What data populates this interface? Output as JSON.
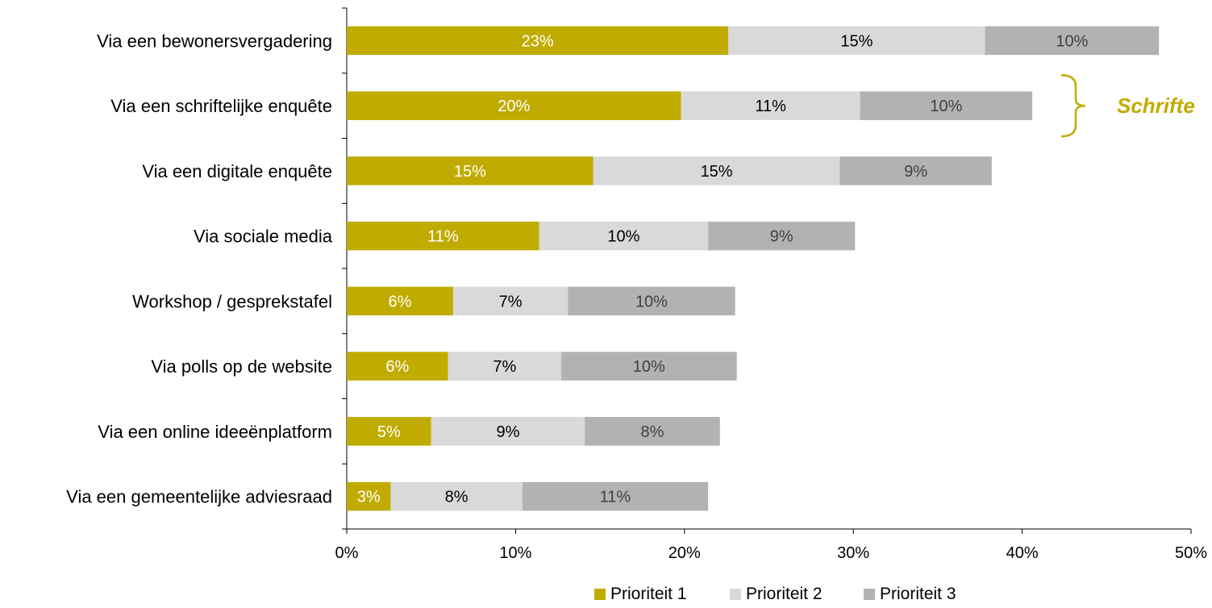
{
  "chart_data": {
    "type": "bar",
    "orientation": "horizontal",
    "stacked": true,
    "categories": [
      "Via een bewonersvergadering",
      "Via een schriftelijke enquête",
      "Via een digitale enquête",
      "Via sociale media",
      "Workshop / gesprekstafel",
      "Via polls op de website",
      "Via een online ideeënplatform",
      "Via een gemeentelijke adviesraad"
    ],
    "series": [
      {
        "name": "Prioriteit 1",
        "color": "#c0ac00",
        "label_color": "#ffffff",
        "values": [
          22.6,
          19.8,
          14.6,
          11.4,
          6.3,
          6.0,
          5.0,
          2.6
        ],
        "labels": [
          "23%",
          "20%",
          "15%",
          "11%",
          "6%",
          "6%",
          "5%",
          "3%"
        ]
      },
      {
        "name": "Prioriteit 2",
        "color": "#d9d9d9",
        "label_color": "#000000",
        "values": [
          15.2,
          10.6,
          14.6,
          10.0,
          6.8,
          6.7,
          9.1,
          7.8
        ],
        "labels": [
          "15%",
          "11%",
          "15%",
          "10%",
          "7%",
          "7%",
          "9%",
          "8%"
        ]
      },
      {
        "name": "Prioriteit 3",
        "color": "#b2b2b2",
        "label_color": "#404040",
        "values": [
          10.3,
          10.2,
          9.0,
          8.7,
          9.9,
          10.4,
          8.0,
          11.0
        ],
        "labels": [
          "10%",
          "10%",
          "9%",
          "9%",
          "10%",
          "10%",
          "8%",
          "11%"
        ]
      }
    ],
    "xlim": [
      0,
      50
    ],
    "xticks": [
      0,
      10,
      20,
      30,
      40,
      50
    ],
    "xtick_labels": [
      "0%",
      "10%",
      "20%",
      "30%",
      "40%",
      "50%"
    ],
    "grid": false,
    "legend_position": "bottom",
    "annotation": {
      "text": "Schrifte",
      "color": "#c0ac00",
      "brace_spans_categories": [
        1
      ]
    }
  }
}
